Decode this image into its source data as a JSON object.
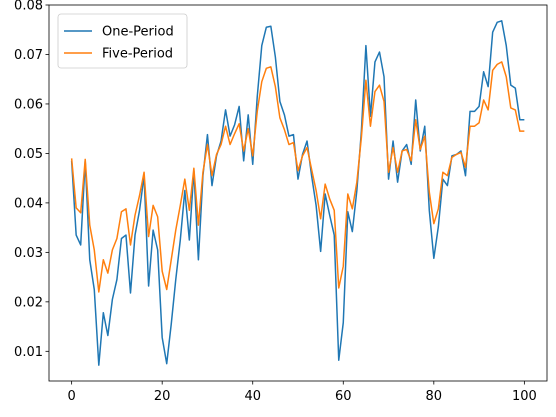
{
  "colors": {
    "one_period": "#1f77b4",
    "five_period": "#ff7f0e",
    "axes": "#000000",
    "legend_border": "#cccccc"
  },
  "chart_data": {
    "type": "line",
    "title": "",
    "xlabel": "",
    "ylabel": "",
    "xlim": [
      -5,
      105
    ],
    "ylim": [
      0.004,
      0.08
    ],
    "xticks": [
      0,
      20,
      40,
      60,
      80,
      100
    ],
    "yticks": [
      0.01,
      0.02,
      0.03,
      0.04,
      0.05,
      0.06,
      0.07,
      0.08
    ],
    "xtick_labels": [
      "0",
      "20",
      "40",
      "60",
      "80",
      "100"
    ],
    "ytick_labels": [
      "0.01",
      "0.02",
      "0.03",
      "0.04",
      "0.05",
      "0.06",
      "0.07",
      "0.08"
    ],
    "grid": false,
    "legend_placement": "upper-left",
    "x": [
      0,
      1,
      2,
      3,
      4,
      5,
      6,
      7,
      8,
      9,
      10,
      11,
      12,
      13,
      14,
      15,
      16,
      17,
      18,
      19,
      20,
      21,
      22,
      23,
      24,
      25,
      26,
      27,
      28,
      29,
      30,
      31,
      32,
      33,
      34,
      35,
      36,
      37,
      38,
      39,
      40,
      41,
      42,
      43,
      44,
      45,
      46,
      47,
      48,
      49,
      50,
      51,
      52,
      53,
      54,
      55,
      56,
      57,
      58,
      59,
      60,
      61,
      62,
      63,
      64,
      65,
      66,
      67,
      68,
      69,
      70,
      71,
      72,
      73,
      74,
      75,
      76,
      77,
      78,
      79,
      80,
      81,
      82,
      83,
      84,
      85,
      86,
      87,
      88,
      89,
      90,
      91,
      92,
      93,
      94,
      95,
      96,
      97,
      98,
      99,
      100
    ],
    "series": [
      {
        "name": "One-Period",
        "color": "#1f77b4",
        "values": [
          0.0485,
          0.0335,
          0.0315,
          0.0485,
          0.0285,
          0.0225,
          0.0072,
          0.0178,
          0.0132,
          0.0205,
          0.0245,
          0.0328,
          0.0335,
          0.0218,
          0.0335,
          0.0385,
          0.0455,
          0.0232,
          0.0345,
          0.0305,
          0.0128,
          0.0075,
          0.0155,
          0.0245,
          0.0325,
          0.0425,
          0.0325,
          0.0465,
          0.0285,
          0.0455,
          0.0538,
          0.0435,
          0.0495,
          0.0525,
          0.0588,
          0.0535,
          0.0558,
          0.0595,
          0.0485,
          0.0578,
          0.0478,
          0.0615,
          0.0718,
          0.0755,
          0.0757,
          0.0695,
          0.0605,
          0.0578,
          0.0535,
          0.0538,
          0.0448,
          0.0498,
          0.0525,
          0.0455,
          0.0395,
          0.0302,
          0.0418,
          0.0375,
          0.0335,
          0.0082,
          0.0158,
          0.0382,
          0.0342,
          0.0425,
          0.0545,
          0.0718,
          0.0575,
          0.0685,
          0.0705,
          0.0655,
          0.0448,
          0.0525,
          0.0442,
          0.0505,
          0.0518,
          0.0478,
          0.0608,
          0.0505,
          0.0555,
          0.0385,
          0.0288,
          0.0352,
          0.0448,
          0.0435,
          0.0495,
          0.0498,
          0.0505,
          0.0455,
          0.0585,
          0.0585,
          0.0595,
          0.0665,
          0.0635,
          0.0745,
          0.0765,
          0.0768,
          0.0718,
          0.0638,
          0.0632,
          0.0568,
          0.0568
        ]
      },
      {
        "name": "Five-Period",
        "color": "#ff7f0e",
        "values": [
          0.049,
          0.039,
          0.038,
          0.0488,
          0.0355,
          0.0305,
          0.022,
          0.0285,
          0.0258,
          0.0305,
          0.0328,
          0.0382,
          0.0388,
          0.0315,
          0.0375,
          0.0415,
          0.0462,
          0.0332,
          0.0395,
          0.0372,
          0.0262,
          0.0225,
          0.0285,
          0.0345,
          0.0395,
          0.0448,
          0.0385,
          0.047,
          0.0355,
          0.0462,
          0.0518,
          0.0455,
          0.0498,
          0.0518,
          0.0555,
          0.0518,
          0.054,
          0.056,
          0.0505,
          0.055,
          0.0495,
          0.0585,
          0.0645,
          0.0672,
          0.0675,
          0.0635,
          0.0572,
          0.0548,
          0.0518,
          0.0522,
          0.0465,
          0.0495,
          0.0512,
          0.0468,
          0.0425,
          0.0368,
          0.0438,
          0.0408,
          0.0385,
          0.0228,
          0.0272,
          0.0418,
          0.0388,
          0.0442,
          0.0532,
          0.0648,
          0.0555,
          0.0625,
          0.0638,
          0.0605,
          0.0462,
          0.0512,
          0.0462,
          0.0505,
          0.0508,
          0.0485,
          0.0568,
          0.0508,
          0.0535,
          0.0422,
          0.0358,
          0.0388,
          0.0462,
          0.0455,
          0.0492,
          0.0498,
          0.0502,
          0.0472,
          0.0555,
          0.0555,
          0.0562,
          0.0608,
          0.0588,
          0.0668,
          0.068,
          0.0685,
          0.0655,
          0.0592,
          0.0588,
          0.0545,
          0.0545
        ]
      }
    ]
  }
}
